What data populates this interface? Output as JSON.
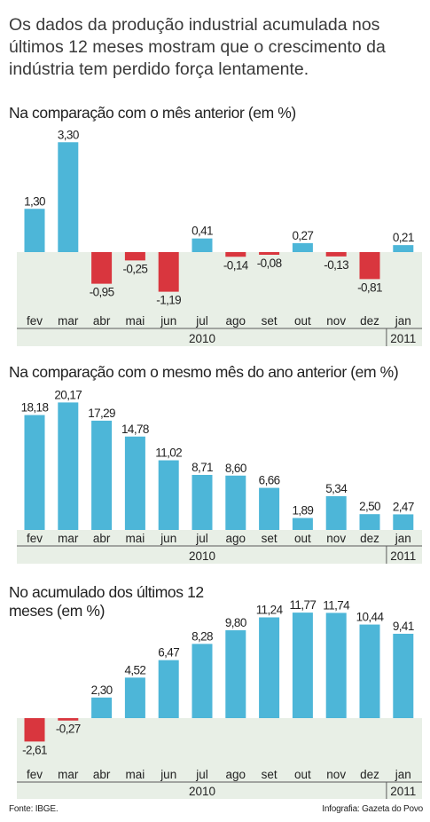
{
  "intro": "Os dados da produção industrial acumulada nos últimos 12 meses mostram que o crescimento da indústria tem perdido força lentamente.",
  "colors": {
    "positive": "#4db6d8",
    "negative": "#d9363e",
    "band": "#e8efe6",
    "text": "#222222"
  },
  "chart_data": [
    {
      "type": "bar",
      "title": "Na comparação com o mês anterior (em %)",
      "categories": [
        "fev",
        "mar",
        "abr",
        "mai",
        "jun",
        "jul",
        "ago",
        "set",
        "out",
        "nov",
        "dez",
        "jan"
      ],
      "values": [
        1.3,
        3.3,
        -0.95,
        -0.25,
        -1.19,
        0.41,
        -0.14,
        -0.08,
        0.27,
        -0.13,
        -0.81,
        0.21
      ],
      "labels": [
        "1,30",
        "3,30",
        "-0,95",
        "-0,25",
        "-1,19",
        "0,41",
        "-0,14",
        "-0,08",
        "0,27",
        "-0,13",
        "-0,81",
        "0,21"
      ],
      "years": [
        {
          "label": "2010",
          "from": 0,
          "to": 10
        },
        {
          "label": "2011",
          "from": 11,
          "to": 11
        }
      ]
    },
    {
      "type": "bar",
      "title": "Na comparação com o mesmo mês do ano anterior (em %)",
      "categories": [
        "fev",
        "mar",
        "abr",
        "mai",
        "jun",
        "jul",
        "ago",
        "set",
        "out",
        "nov",
        "dez",
        "jan"
      ],
      "values": [
        18.18,
        20.17,
        17.29,
        14.78,
        11.02,
        8.71,
        8.6,
        6.66,
        1.89,
        5.34,
        2.5,
        2.47
      ],
      "labels": [
        "18,18",
        "20,17",
        "17,29",
        "14,78",
        "11,02",
        "8,71",
        "8,60",
        "6,66",
        "1,89",
        "5,34",
        "2,50",
        "2,47"
      ],
      "years": [
        {
          "label": "2010",
          "from": 0,
          "to": 10
        },
        {
          "label": "2011",
          "from": 11,
          "to": 11
        }
      ]
    },
    {
      "type": "bar",
      "title": "No acumulado dos últimos 12 meses (em %)",
      "categories": [
        "fev",
        "mar",
        "abr",
        "mai",
        "jun",
        "jul",
        "ago",
        "set",
        "out",
        "nov",
        "dez",
        "jan"
      ],
      "values": [
        -2.61,
        -0.27,
        2.3,
        4.52,
        6.47,
        8.28,
        9.8,
        11.24,
        11.77,
        11.74,
        10.44,
        9.41
      ],
      "labels": [
        "-2,61",
        "-0,27",
        "2,30",
        "4,52",
        "6,47",
        "8,28",
        "9,80",
        "11,24",
        "11,77",
        "11,74",
        "10,44",
        "9,41"
      ],
      "years": [
        {
          "label": "2010",
          "from": 0,
          "to": 10
        },
        {
          "label": "2011",
          "from": 11,
          "to": 11
        }
      ]
    }
  ],
  "footer": {
    "source": "Fonte: IBGE.",
    "credit": "Infografia: Gazeta do Povo"
  }
}
